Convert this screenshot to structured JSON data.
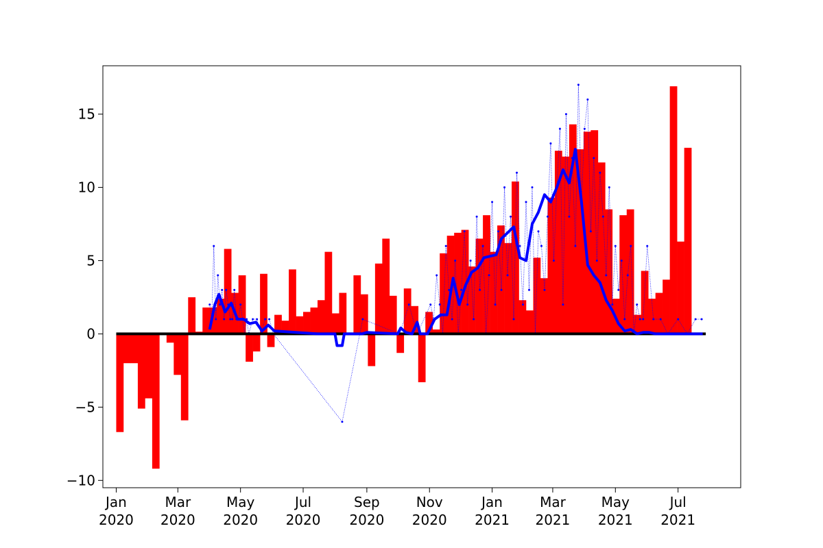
{
  "chart_data": {
    "type": "bar",
    "title": "",
    "xlabel": "",
    "ylabel": "",
    "ylim": [
      -10.5,
      18.3
    ],
    "xlim": [
      "2019-12-19",
      "2021-08-31"
    ],
    "y_ticks": [
      -10,
      -5,
      0,
      5,
      10,
      15
    ],
    "y_tick_labels": [
      "−10",
      "−5",
      "0",
      "5",
      "10",
      "15"
    ],
    "x_ticks": [
      {
        "date": "2020-01-01",
        "label": [
          "Jan",
          "2020"
        ]
      },
      {
        "date": "2020-03-01",
        "label": [
          "Mar",
          "2020"
        ]
      },
      {
        "date": "2020-05-01",
        "label": [
          "May",
          "2020"
        ]
      },
      {
        "date": "2020-07-01",
        "label": [
          "Jul",
          "2020"
        ]
      },
      {
        "date": "2020-09-01",
        "label": [
          "Sep",
          "2020"
        ]
      },
      {
        "date": "2020-11-01",
        "label": [
          "Nov",
          "2020"
        ]
      },
      {
        "date": "2021-01-01",
        "label": [
          "Jan",
          "2021"
        ]
      },
      {
        "date": "2021-03-01",
        "label": [
          "Mar",
          "2021"
        ]
      },
      {
        "date": "2021-05-01",
        "label": [
          "May",
          "2021"
        ]
      },
      {
        "date": "2021-07-01",
        "label": [
          "Jul",
          "2021"
        ]
      }
    ],
    "colors": {
      "bars": "#ff0000",
      "rolling": "#0000ff",
      "daily": "#0000ff",
      "baseline": "#000000"
    },
    "series": [
      {
        "type": "bar",
        "bar_width_days": 7,
        "x": [
          "2020-01-01",
          "2020-01-08",
          "2020-01-15",
          "2020-01-22",
          "2020-01-29",
          "2020-02-05",
          "2020-02-12",
          "2020-02-19",
          "2020-02-26",
          "2020-03-04",
          "2020-03-11",
          "2020-03-18",
          "2020-03-25",
          "2020-04-01",
          "2020-04-08",
          "2020-04-15",
          "2020-04-22",
          "2020-04-29",
          "2020-05-06",
          "2020-05-13",
          "2020-05-20",
          "2020-05-27",
          "2020-06-03",
          "2020-06-10",
          "2020-06-17",
          "2020-06-24",
          "2020-07-01",
          "2020-07-08",
          "2020-07-15",
          "2020-07-22",
          "2020-07-29",
          "2020-08-05",
          "2020-08-12",
          "2020-08-19",
          "2020-08-26",
          "2020-09-02",
          "2020-09-09",
          "2020-09-16",
          "2020-09-23",
          "2020-09-30",
          "2020-10-07",
          "2020-10-14",
          "2020-10-21",
          "2020-10-28",
          "2020-11-04",
          "2020-11-11",
          "2020-11-18",
          "2020-11-25",
          "2020-12-02",
          "2020-12-09",
          "2020-12-16",
          "2020-12-23",
          "2020-12-30",
          "2021-01-06",
          "2021-01-13",
          "2021-01-20",
          "2021-01-27",
          "2021-02-03",
          "2021-02-10",
          "2021-02-17",
          "2021-02-24",
          "2021-03-03",
          "2021-03-10",
          "2021-03-17",
          "2021-03-24",
          "2021-03-31",
          "2021-04-07",
          "2021-04-14",
          "2021-04-21",
          "2021-04-28",
          "2021-05-05",
          "2021-05-12",
          "2021-05-19",
          "2021-05-26",
          "2021-06-02",
          "2021-06-09",
          "2021-06-16",
          "2021-06-23",
          "2021-06-30",
          "2021-07-07"
        ],
        "values": [
          -6.7,
          -2,
          -2,
          -5.1,
          -4.4,
          -9.2,
          0,
          -0.6,
          -2.8,
          -5.9,
          2.5,
          0.15,
          1.8,
          1.8,
          2.4,
          5.8,
          2.8,
          4.0,
          -1.9,
          -1.2,
          4.1,
          -0.9,
          1.3,
          0.9,
          4.4,
          1.2,
          1.5,
          1.8,
          2.3,
          5.6,
          1.4,
          2.8,
          0,
          4.0,
          2.7,
          -2.2,
          4.8,
          6.5,
          2.6,
          -1.3,
          3.1,
          1.9,
          -3.3,
          1.5,
          0.3,
          5.5,
          6.7,
          6.9,
          7.1,
          4.6,
          6.5,
          8.1,
          5.6,
          7.4,
          6.2,
          10.4,
          2.3,
          1.6,
          5.2,
          3.8,
          9.3,
          12.5,
          12.1,
          14.3,
          12.6,
          13.8,
          13.9,
          11.7,
          8.5,
          2.4,
          8.1,
          8.5,
          1.3,
          4.3,
          2.4,
          2.8,
          3.7,
          16.9,
          6.3,
          12.7
        ]
      },
      {
        "type": "line",
        "x": [
          "2020-04-01",
          "2020-04-06",
          "2020-04-10",
          "2020-04-16",
          "2020-04-22",
          "2020-04-28",
          "2020-05-04",
          "2020-05-10",
          "2020-05-16",
          "2020-05-22",
          "2020-05-28",
          "2020-06-03",
          "2020-07-15",
          "2020-08-01",
          "2020-08-03",
          "2020-08-08",
          "2020-08-10",
          "2020-08-27",
          "2020-09-01",
          "2020-10-01",
          "2020-10-04",
          "2020-10-09",
          "2020-10-15",
          "2020-10-20",
          "2020-10-23",
          "2020-10-30",
          "2020-11-06",
          "2020-11-12",
          "2020-11-18",
          "2020-11-24",
          "2020-11-30",
          "2020-12-06",
          "2020-12-12",
          "2020-12-18",
          "2020-12-24",
          "2020-12-30",
          "2021-01-05",
          "2021-01-10",
          "2021-01-16",
          "2021-01-22",
          "2021-01-28",
          "2021-02-03",
          "2021-02-09",
          "2021-02-15",
          "2021-02-21",
          "2021-02-27",
          "2021-03-05",
          "2021-03-11",
          "2021-03-17",
          "2021-03-23",
          "2021-03-29",
          "2021-04-04",
          "2021-04-10",
          "2021-04-16",
          "2021-04-22",
          "2021-04-28",
          "2021-05-04",
          "2021-05-10",
          "2021-05-16",
          "2021-05-22",
          "2021-05-28",
          "2021-06-03",
          "2021-06-09",
          "2021-06-15",
          "2021-06-21",
          "2021-06-27",
          "2021-07-05",
          "2021-07-25"
        ],
        "values": [
          0.3,
          2.0,
          2.7,
          1.5,
          2.1,
          1.0,
          1.0,
          0.7,
          0.8,
          0.2,
          0.6,
          0.2,
          0.0,
          0.0,
          -0.8,
          -0.8,
          0.0,
          0.0,
          0.1,
          0.0,
          0.4,
          0.1,
          0.0,
          0.8,
          0.0,
          0.0,
          1.0,
          1.3,
          1.3,
          3.8,
          2.0,
          3.3,
          4.2,
          4.5,
          5.2,
          5.3,
          5.4,
          6.5,
          6.9,
          7.3,
          5.2,
          5.0,
          7.5,
          8.3,
          9.5,
          9.0,
          10.0,
          11.2,
          10.3,
          12.6,
          9.0,
          4.7,
          4.0,
          3.5,
          2.3,
          1.6,
          0.7,
          0.2,
          0.3,
          0.0,
          0.1,
          0.1,
          0.0,
          0.0,
          0.0,
          0.0,
          0.0,
          0.0
        ]
      },
      {
        "type": "scatter",
        "x": [
          "2020-04-01",
          "2020-04-03",
          "2020-04-05",
          "2020-04-07",
          "2020-04-09",
          "2020-04-11",
          "2020-04-13",
          "2020-04-15",
          "2020-04-17",
          "2020-04-19",
          "2020-04-21",
          "2020-04-23",
          "2020-04-25",
          "2020-04-27",
          "2020-04-29",
          "2020-05-01",
          "2020-05-03",
          "2020-05-05",
          "2020-05-07",
          "2020-05-09",
          "2020-05-13",
          "2020-05-17",
          "2020-05-21",
          "2020-05-25",
          "2020-05-29",
          "2020-06-02",
          "2020-08-08",
          "2020-08-28",
          "2020-10-03",
          "2020-10-12",
          "2020-10-20",
          "2020-11-02",
          "2020-11-05",
          "2020-11-08",
          "2020-11-11",
          "2020-11-14",
          "2020-11-17",
          "2020-11-20",
          "2020-11-23",
          "2020-11-26",
          "2020-11-29",
          "2020-12-02",
          "2020-12-05",
          "2020-12-08",
          "2020-12-11",
          "2020-12-14",
          "2020-12-17",
          "2020-12-20",
          "2020-12-23",
          "2020-12-26",
          "2020-12-29",
          "2021-01-01",
          "2021-01-04",
          "2021-01-07",
          "2021-01-10",
          "2021-01-13",
          "2021-01-16",
          "2021-01-19",
          "2021-01-22",
          "2021-01-25",
          "2021-01-28",
          "2021-01-31",
          "2021-02-03",
          "2021-02-06",
          "2021-02-09",
          "2021-02-12",
          "2021-02-15",
          "2021-02-18",
          "2021-02-21",
          "2021-02-24",
          "2021-02-27",
          "2021-03-02",
          "2021-03-05",
          "2021-03-08",
          "2021-03-11",
          "2021-03-14",
          "2021-03-17",
          "2021-03-20",
          "2021-03-23",
          "2021-03-26",
          "2021-03-29",
          "2021-04-01",
          "2021-04-04",
          "2021-04-07",
          "2021-04-10",
          "2021-04-13",
          "2021-04-16",
          "2021-04-19",
          "2021-04-22",
          "2021-04-25",
          "2021-04-28",
          "2021-05-01",
          "2021-05-04",
          "2021-05-07",
          "2021-05-10",
          "2021-05-13",
          "2021-05-16",
          "2021-05-19",
          "2021-05-22",
          "2021-05-25",
          "2021-05-28",
          "2021-06-01",
          "2021-06-07",
          "2021-06-14",
          "2021-06-21",
          "2021-07-01",
          "2021-07-10",
          "2021-07-18",
          "2021-07-24"
        ],
        "values": [
          2,
          1,
          6,
          1,
          4,
          2,
          3,
          1,
          3,
          2,
          1,
          1,
          3,
          1,
          1,
          2,
          1,
          0,
          1,
          0,
          1,
          1,
          0,
          1,
          1,
          0,
          -6,
          1,
          0,
          2,
          0,
          2,
          1,
          4,
          2,
          0,
          6,
          3,
          1,
          5,
          0,
          3,
          7,
          2,
          5,
          1,
          8,
          3,
          6,
          0,
          4,
          9,
          2,
          7,
          3,
          10,
          4,
          8,
          1,
          11,
          6,
          2,
          9,
          3,
          10,
          0,
          7,
          6,
          3,
          8,
          13,
          5,
          10,
          14,
          2,
          15,
          8,
          12,
          6,
          17,
          9,
          14,
          16,
          7,
          12,
          5,
          11,
          8,
          4,
          10,
          2,
          6,
          3,
          5,
          1,
          4,
          6,
          0,
          2,
          1,
          1,
          6,
          1,
          1,
          0,
          1,
          0,
          1,
          1
        ]
      }
    ]
  }
}
